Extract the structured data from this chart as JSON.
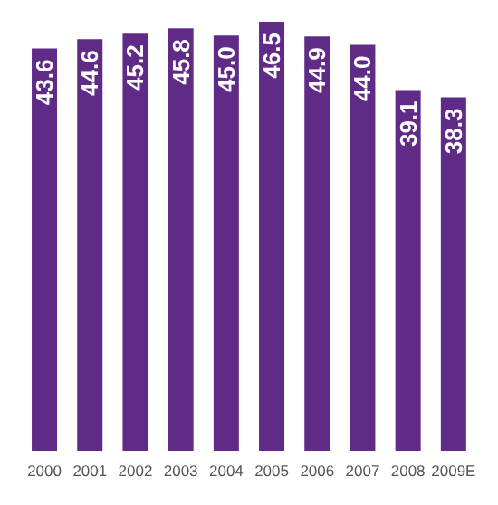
{
  "chart_data": {
    "type": "bar",
    "categories": [
      "2000",
      "2001",
      "2002",
      "2003",
      "2004",
      "2005",
      "2006",
      "2007",
      "2008",
      "2009E"
    ],
    "values": [
      43.6,
      44.6,
      45.2,
      45.8,
      45.0,
      46.5,
      44.9,
      44.0,
      39.1,
      38.3
    ],
    "value_labels": [
      "43.6",
      "44.6",
      "45.2",
      "45.8",
      "45.0",
      "46.5",
      "44.9",
      "44.0",
      "39.1",
      "38.3"
    ],
    "color": "#5f2b87"
  }
}
